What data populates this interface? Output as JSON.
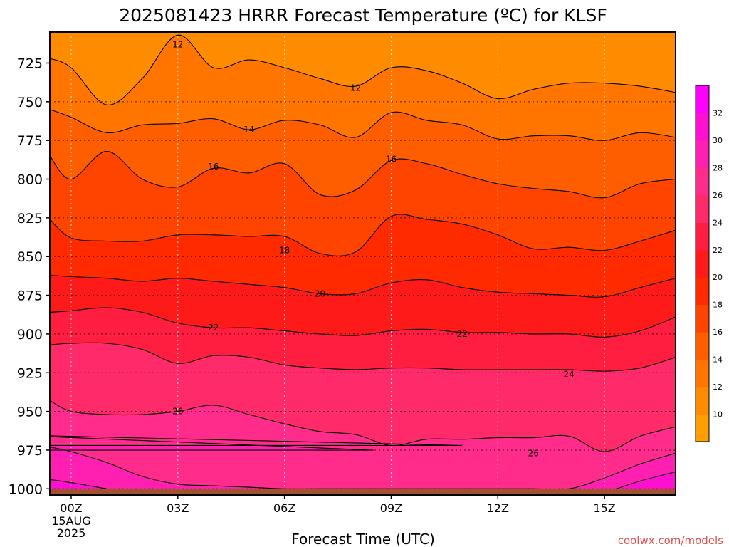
{
  "chart_data": {
    "type": "contour",
    "title": "2025081423 HRRR Forecast Temperature (ºC) for KLSF",
    "xlabel": "Forecast Time (UTC)",
    "ylabel": "",
    "x_ticks": [
      {
        "hour": 0,
        "label": "00Z",
        "sub": [
          "15AUG",
          "2025"
        ]
      },
      {
        "hour": 3,
        "label": "03Z"
      },
      {
        "hour": 6,
        "label": "06Z"
      },
      {
        "hour": 9,
        "label": "09Z"
      },
      {
        "hour": 12,
        "label": "12Z"
      },
      {
        "hour": 15,
        "label": "15Z"
      }
    ],
    "xlim": [
      -0.6,
      17.0
    ],
    "y_ticks": [
      725,
      750,
      775,
      800,
      825,
      850,
      875,
      900,
      925,
      950,
      975,
      1000
    ],
    "ylim": [
      705,
      1004
    ],
    "y_axis": "pressure (hPa), increasing downward",
    "grid": true,
    "colorbar": {
      "labels": [
        10,
        12,
        14,
        16,
        18,
        20,
        22,
        24,
        26,
        28,
        30,
        32
      ],
      "levels": [
        8,
        10,
        12,
        14,
        16,
        18,
        20,
        22,
        24,
        26,
        28,
        30,
        32,
        34
      ],
      "colors": [
        "#ff9e00",
        "#ff8c00",
        "#ff7500",
        "#ff5e00",
        "#ff4400",
        "#ff2a00",
        "#ff1a1a",
        "#ff1e40",
        "#ff2a6a",
        "#ff2c8c",
        "#ff1fb0",
        "#ff10d0",
        "#ff00ff"
      ]
    },
    "contour_labels": [
      {
        "text": "12",
        "hour": 3.0,
        "p": 713
      },
      {
        "text": "12",
        "hour": 8.0,
        "p": 741
      },
      {
        "text": "14",
        "hour": 5.0,
        "p": 768
      },
      {
        "text": "16",
        "hour": 4.0,
        "p": 792
      },
      {
        "text": "16",
        "hour": 9.0,
        "p": 787
      },
      {
        "text": "18",
        "hour": 6.0,
        "p": 846
      },
      {
        "text": "20",
        "hour": 7.0,
        "p": 874
      },
      {
        "text": "22",
        "hour": 4.0,
        "p": 896
      },
      {
        "text": "22",
        "hour": 11.0,
        "p": 900
      },
      {
        "text": "24",
        "hour": 14.0,
        "p": 926
      },
      {
        "text": "26",
        "hour": 3.0,
        "p": 950
      },
      {
        "text": "26",
        "hour": 13.0,
        "p": 977
      }
    ],
    "series": [
      {
        "level": 12,
        "x": [
          -0.6,
          0,
          1,
          2,
          3,
          4,
          5,
          6,
          7,
          8,
          9,
          10,
          11,
          12,
          13,
          14,
          15,
          16,
          17
        ],
        "p": [
          722,
          728,
          752,
          735,
          707,
          728,
          723,
          728,
          735,
          740,
          728,
          730,
          738,
          748,
          742,
          738,
          738,
          740,
          744
        ]
      },
      {
        "level": 14,
        "x": [
          -0.6,
          0,
          1,
          2,
          3,
          4,
          5,
          6,
          7,
          8,
          9,
          10,
          11,
          12,
          13,
          14,
          15,
          16,
          17
        ],
        "p": [
          755,
          760,
          770,
          765,
          764,
          761,
          768,
          762,
          765,
          773,
          757,
          762,
          765,
          774,
          772,
          772,
          775,
          770,
          773
        ]
      },
      {
        "level": 16,
        "x": [
          -0.6,
          0,
          1,
          2,
          3,
          4,
          5,
          6,
          7,
          8,
          9,
          10,
          11,
          12,
          13,
          14,
          15,
          16,
          17
        ],
        "p": [
          785,
          800,
          782,
          800,
          805,
          793,
          796,
          790,
          810,
          807,
          788,
          790,
          797,
          803,
          806,
          808,
          812,
          803,
          800
        ]
      },
      {
        "level": 18,
        "x": [
          -0.6,
          0,
          1,
          2,
          3,
          4,
          5,
          6,
          7,
          8,
          9,
          10,
          11,
          12,
          13,
          14,
          15,
          16,
          17
        ],
        "p": [
          826,
          838,
          840,
          840,
          836,
          836,
          837,
          837,
          848,
          847,
          824,
          826,
          829,
          836,
          845,
          844,
          846,
          840,
          833
        ]
      },
      {
        "level": 20,
        "x": [
          -0.6,
          0,
          1,
          2,
          3,
          4,
          5,
          6,
          7,
          8,
          9,
          10,
          11,
          12,
          13,
          14,
          15,
          16,
          17
        ],
        "p": [
          862,
          863,
          864,
          866,
          864,
          866,
          868,
          870,
          874,
          874,
          867,
          865,
          870,
          873,
          874,
          875,
          876,
          870,
          864
        ]
      },
      {
        "level": 22,
        "x": [
          -0.6,
          0,
          1,
          2,
          3,
          4,
          5,
          6,
          7,
          8,
          9,
          10,
          11,
          12,
          13,
          14,
          15,
          16,
          17
        ],
        "p": [
          886,
          885,
          883,
          886,
          893,
          896,
          896,
          898,
          900,
          901,
          898,
          897,
          899,
          899,
          900,
          900,
          902,
          898,
          889
        ]
      },
      {
        "level": 24,
        "x": [
          -0.6,
          0,
          1,
          2,
          3,
          4,
          5,
          6,
          7,
          8,
          9,
          10,
          11,
          12,
          13,
          14,
          15,
          16,
          17
        ],
        "p": [
          907,
          906,
          906,
          910,
          919,
          914,
          915,
          920,
          922,
          923,
          922,
          922,
          923,
          923,
          923,
          923,
          924,
          922,
          915
        ]
      },
      {
        "level": 26,
        "x": [
          -0.6,
          0,
          1,
          2,
          3,
          4,
          5,
          6,
          7,
          8,
          9,
          10,
          11,
          12,
          13,
          14,
          15,
          16,
          17
        ],
        "p": [
          943,
          950,
          952,
          952,
          950,
          946,
          952,
          958,
          963,
          965,
          972,
          968,
          968,
          967,
          967,
          966,
          976,
          966,
          960
        ]
      },
      {
        "level": 28,
        "x": [
          -0.6,
          0,
          1,
          2,
          3,
          4,
          5,
          6,
          7,
          8,
          9,
          10,
          11,
          12,
          13,
          14,
          15,
          16,
          17
        ],
        "p": [
          973,
          976,
          983,
          992,
          997,
          998,
          999,
          1000,
          1000,
          1000,
          1000,
          1000,
          1000,
          1000,
          1000,
          1000,
          993,
          984,
          977
        ]
      },
      {
        "level": 30,
        "x": [
          -0.6,
          0,
          1,
          2,
          3,
          4,
          5,
          6,
          7,
          8,
          9,
          10,
          11,
          12,
          13,
          14,
          15,
          16,
          17
        ],
        "p": [
          994,
          996,
          1000,
          1004,
          1004,
          1004,
          1004,
          1004,
          1004,
          1004,
          1004,
          1004,
          1004,
          1004,
          1004,
          1004,
          1002,
          995,
          989
        ]
      }
    ],
    "warm_pockets": [
      {
        "level": 28,
        "x": [
          8.5,
          9.5,
          10.6,
          11.2,
          9.8,
          8.8,
          8.0
        ],
        "p": [
          975,
          965,
          968,
          978,
          987,
          990,
          982
        ]
      },
      {
        "level": 26,
        "x": [
          11.0,
          12.0,
          13.5,
          14.4,
          13.8,
          12.5,
          11.2
        ],
        "p": [
          972,
          965,
          965,
          980,
          990,
          990,
          980
        ]
      }
    ],
    "ground": {
      "p_top": 1000,
      "color": "#a0522d"
    }
  },
  "footer": {
    "credit": "coolwx.com/models"
  },
  "colors": {
    "axis": "#000000",
    "grid": "#000000",
    "credit": "#e05050",
    "contour": "#000000"
  }
}
